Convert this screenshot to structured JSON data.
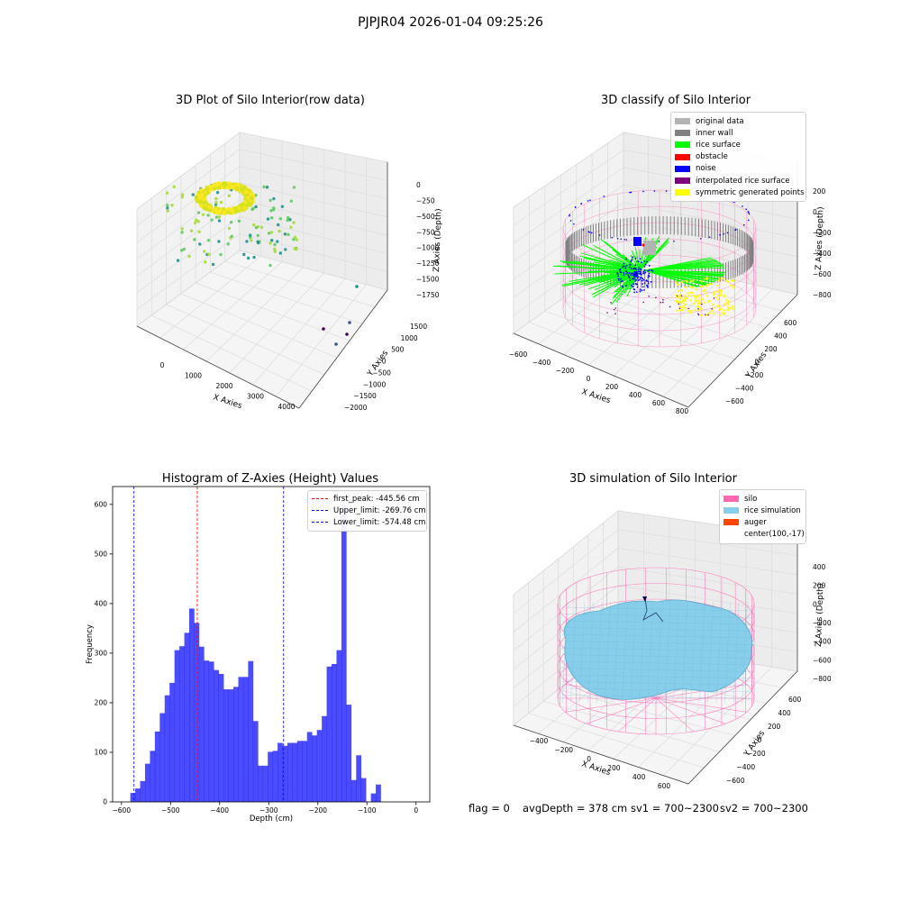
{
  "figure": {
    "suptitle": "PJPJR04 2026-01-04 09:25:26",
    "footer": {
      "flag": "flag = 0",
      "avg_depth": "avgDepth = 378 cm",
      "sv1": "sv1 = 700~2300",
      "sv2": "sv2 = 700~2300"
    }
  },
  "panels": {
    "raw": {
      "title": "3D Plot of Silo Interior(row data)",
      "xlabel": "X Axies",
      "ylabel": "Y Axies",
      "zlabel": "Z Axies (Depth)",
      "xticks": [
        "0",
        "1000",
        "2000",
        "3000",
        "4000"
      ],
      "yticks": [
        "1500",
        "1000",
        "500",
        "0",
        "−500",
        "−1000",
        "−1500",
        "−2000"
      ],
      "zticks": [
        "0",
        "−250",
        "−500",
        "−750",
        "−1000",
        "−1250",
        "−1500",
        "−1750"
      ],
      "colormap": "viridis"
    },
    "classify": {
      "title": "3D classify of Silo Interior",
      "xlabel": "X Axies",
      "ylabel": "Y Axies",
      "zlabel": "Z Axies (Depth)",
      "xticks": [
        "−600",
        "−400",
        "−200",
        "0",
        "200",
        "400",
        "600",
        "800"
      ],
      "yticks": [
        "600",
        "400",
        "200",
        "0",
        "−200",
        "−400",
        "−600"
      ],
      "zticks": [
        "200",
        "0",
        "−200",
        "−400",
        "−600",
        "−800"
      ],
      "legend": [
        {
          "label": "original data",
          "color": "#b3b3b3"
        },
        {
          "label": "inner wall",
          "color": "#808080"
        },
        {
          "label": "rice surface",
          "color": "#00ff00"
        },
        {
          "label": "obstacle",
          "color": "#ff0000"
        },
        {
          "label": "noise",
          "color": "#0000ff"
        },
        {
          "label": "interpolated rice surface",
          "color": "#800080"
        },
        {
          "label": "symmetric generated points",
          "color": "#ffff00"
        }
      ],
      "silo_wire_color": "#ff69b4"
    },
    "simulation": {
      "title": "3D simulation of Silo Interior",
      "xlabel": "X Axies",
      "ylabel": "Y Axies",
      "zlabel": "Z Axies (Depth)",
      "xticks": [
        "−400",
        "−200",
        "0",
        "200",
        "400",
        "600"
      ],
      "yticks": [
        "600",
        "400",
        "200",
        "0",
        "−200",
        "−400",
        "−600"
      ],
      "zticks": [
        "400",
        "200",
        "0",
        "−200",
        "−400",
        "−600",
        "−800"
      ],
      "legend": [
        {
          "label": "silo",
          "color": "#ff69b4"
        },
        {
          "label": "rice simulation",
          "color": "#87ceeb"
        },
        {
          "label": "auger",
          "color": "#ff4500"
        },
        {
          "label": "center(100,-17)",
          "color": ""
        }
      ]
    }
  },
  "chart_data": [
    {
      "type": "bar",
      "title": "Histogram of Z-Axies (Height) Values",
      "xlabel": "Depth (cm)",
      "ylabel": "Frequency",
      "xlim": [
        -618,
        28
      ],
      "ylim": [
        0,
        636
      ],
      "bar_color": "#0000ff",
      "bin_start": -582,
      "bin_width": 10,
      "values": [
        18,
        27,
        42,
        77,
        103,
        142,
        179,
        215,
        240,
        306,
        314,
        341,
        390,
        361,
        313,
        285,
        283,
        266,
        258,
        227,
        227,
        232,
        252,
        252,
        284,
        163,
        73,
        73,
        101,
        103,
        119,
        113,
        119,
        119,
        123,
        123,
        141,
        134,
        145,
        173,
        273,
        278,
        306,
        600,
        196,
        44,
        94,
        48,
        0,
        17,
        35
      ],
      "xticks": [
        "−600",
        "−500",
        "−400",
        "−300",
        "−200",
        "−100",
        "0"
      ],
      "xtick_values": [
        -600,
        -500,
        -400,
        -300,
        -200,
        -100,
        0
      ],
      "yticks": [
        "0",
        "100",
        "200",
        "300",
        "400",
        "500",
        "600"
      ],
      "ytick_values": [
        0,
        100,
        200,
        300,
        400,
        500,
        600
      ],
      "vlines": [
        {
          "label": "first_peak: -445.56 cm",
          "x": -445.56,
          "color": "#ff0000"
        },
        {
          "label": "Upper_limit: -269.76 cm",
          "x": -269.76,
          "color": "#0000ff"
        },
        {
          "label": "Lower_limit: -574.48 cm",
          "x": -574.48,
          "color": "#0000ff"
        }
      ],
      "legend": "upper right"
    }
  ]
}
